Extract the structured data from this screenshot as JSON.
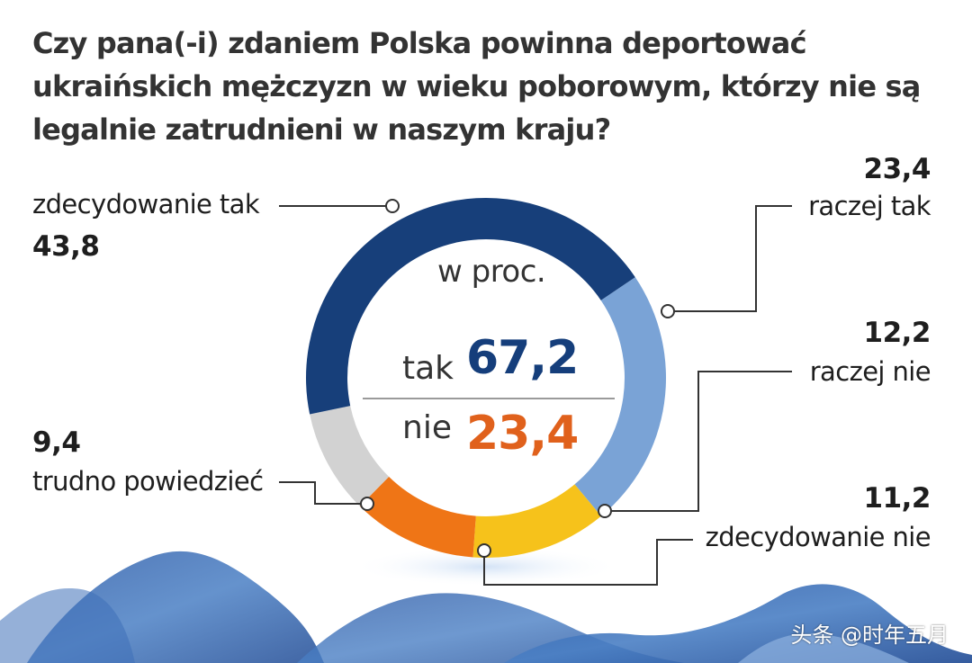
{
  "title": [
    "Czy pana(-i) zdaniem Polska powinna deportować",
    "ukraińskich mężczyzn w wieku poborowym, którzy nie są",
    "legalnie zatrudnieni w naszym kraju?"
  ],
  "center": {
    "unit": "w proc.",
    "yes_label": "tak",
    "yes_value": "67,2",
    "no_label": "nie",
    "no_value": "23,4"
  },
  "chart_data": {
    "type": "pie",
    "style": "donut",
    "title": "Czy pana(-i) zdaniem Polska powinna deportować ukraińskich mężczyzn w wieku poborowym, którzy nie są legalnie zatrudnieni w naszym kraju?",
    "unit": "w proc.",
    "slices": [
      {
        "label": "zdecydowanie tak",
        "value": 43.8,
        "display": "43,8",
        "color": "#173f7a"
      },
      {
        "label": "raczej tak",
        "value": 23.4,
        "display": "23,4",
        "color": "#7aa3d6"
      },
      {
        "label": "raczej nie",
        "value": 12.2,
        "display": "12,2",
        "color": "#f6c21b"
      },
      {
        "label": "zdecydowanie nie",
        "value": 11.2,
        "display": "11,2",
        "color": "#ef7516"
      },
      {
        "label": "trudno powiedzieć",
        "value": 9.4,
        "display": "9,4",
        "color": "#d2d2d2"
      }
    ]
  },
  "watermark": "头条 @时年五月"
}
